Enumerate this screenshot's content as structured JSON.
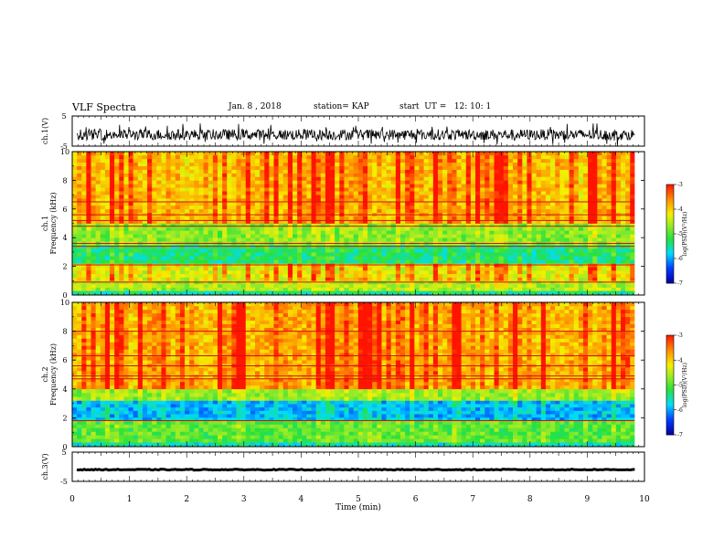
{
  "header": {
    "title": "VLF Spectra",
    "date": "Jan. 8 , 2018",
    "station": "station= KAP",
    "start": "start  UT =   12: 10: 1"
  },
  "colors": {
    "spectrum_low": "#0000c8",
    "spectrum_mid_low": "#00e0ff",
    "spectrum_mid": "#30e030",
    "spectrum_mid_high": "#f0f000",
    "spectrum_high": "#ff2000",
    "trace": "#000000"
  },
  "chart_data": [
    {
      "type": "line",
      "panel": "ch1-waveform",
      "ylabel": "ch.1(V)",
      "ylim": [
        -5,
        5
      ],
      "yticks": [
        "5",
        "-5"
      ],
      "series": [
        {
          "description_level": "noisy trace around -1 V",
          "mean_v": -1.2,
          "amplitude_v": 1.8
        }
      ]
    },
    {
      "type": "heatmap",
      "panel": "ch1-spectrogram",
      "ylabel": "ch.1\nFrequency (kHz)",
      "ylim": [
        0,
        10
      ],
      "yticks": [
        "0",
        "2",
        "4",
        "6",
        "8",
        "10"
      ],
      "colorbar": {
        "label": "log(PSD)(V²/Hz)",
        "ticks": [
          "-3",
          "-4",
          "-5",
          "-6",
          "-7"
        ],
        "range": [
          -7,
          -3
        ]
      },
      "bands_khz": [
        {
          "from": 0.0,
          "to": 0.3,
          "level": -5.5
        },
        {
          "from": 0.3,
          "to": 1.0,
          "level": -4.6
        },
        {
          "from": 1.0,
          "to": 2.2,
          "level": -4.3
        },
        {
          "from": 2.2,
          "to": 3.5,
          "level": -5.4
        },
        {
          "from": 3.5,
          "to": 5.0,
          "level": -4.8
        },
        {
          "from": 5.0,
          "to": 10.0,
          "level": -3.9
        }
      ],
      "tones_khz": [
        0.9,
        2.1,
        3.4,
        3.6,
        4.8,
        5.2,
        5.6,
        6.5
      ]
    },
    {
      "type": "heatmap",
      "panel": "ch2-spectrogram",
      "ylabel": "ch.2\nFrequency (kHz)",
      "ylim": [
        0,
        10
      ],
      "yticks": [
        "0",
        "2",
        "4",
        "6",
        "8",
        "10"
      ],
      "colorbar": {
        "label": "log(PSD)(V²/Hz)",
        "ticks": [
          "-3",
          "-4",
          "-5",
          "-6",
          "-7"
        ],
        "range": [
          -7,
          -3
        ]
      },
      "bands_khz": [
        {
          "from": 0.0,
          "to": 0.3,
          "level": -5.6
        },
        {
          "from": 0.3,
          "to": 1.8,
          "level": -5.0
        },
        {
          "from": 1.8,
          "to": 3.2,
          "level": -5.9
        },
        {
          "from": 3.2,
          "to": 4.0,
          "level": -4.7
        },
        {
          "from": 4.0,
          "to": 10.0,
          "level": -3.8
        }
      ],
      "tones_khz": [
        1.8,
        4.7,
        4.9,
        5.6,
        6.3,
        8.0
      ]
    },
    {
      "type": "line",
      "panel": "ch3-waveform",
      "ylabel": "ch.3(V)",
      "ylim": [
        -5,
        5
      ],
      "yticks": [
        "5",
        "-5"
      ],
      "series": [
        {
          "description_level": "flat trace",
          "mean_v": -1.0,
          "amplitude_v": 0.15
        }
      ]
    }
  ],
  "x_axis": {
    "label": "Time  (min)",
    "xlim": [
      0,
      10
    ],
    "data_end": 9.83,
    "ticks": [
      "0",
      "1",
      "2",
      "3",
      "4",
      "5",
      "6",
      "7",
      "8",
      "9",
      "10"
    ]
  }
}
